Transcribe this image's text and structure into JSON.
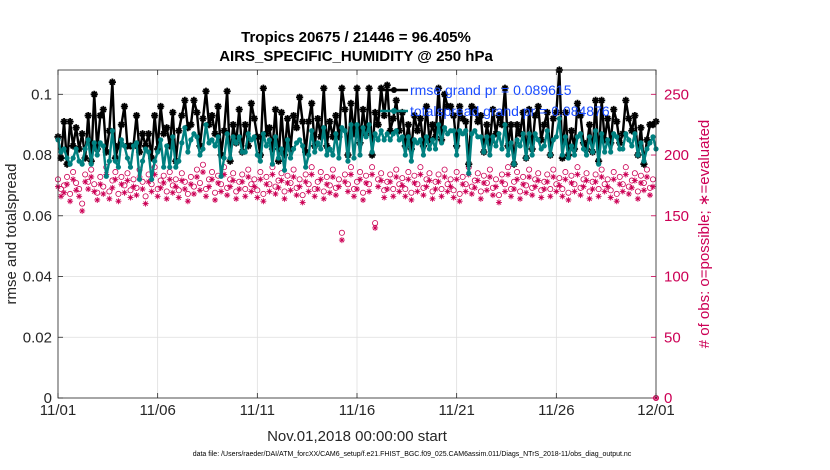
{
  "chart_data": {
    "type": "line",
    "title": "Tropics 20675 / 21446 = 96.405%",
    "subtitle": "AIRS_SPECIFIC_HUMIDITY @ 250 hPa",
    "xlabel": "Nov.01,2018 00:00:00 start",
    "ylabel": "rmse and totalspread",
    "ylabel_right": "# of obs: o=possible; ∗=evaluated",
    "footer": "data file: /Users/raeder/DAI/ATM_forcXX/CAM6_setup/f.e21.FHIST_BGC.f09_025.CAM6assim.011/Diags_NTrS_2018-11/obs_diag_output.nc",
    "xlim": [
      0,
      30
    ],
    "ylim": [
      0,
      0.108
    ],
    "ylim_right": [
      0,
      270
    ],
    "x_ticks": [
      0,
      5,
      10,
      15,
      20,
      25,
      30
    ],
    "x_tick_labels": [
      "11/01",
      "11/06",
      "11/11",
      "11/16",
      "11/21",
      "11/26",
      "12/01"
    ],
    "y_ticks": [
      0,
      0.02,
      0.04,
      0.06,
      0.08,
      0.1
    ],
    "y_tick_labels": [
      "0",
      "0.02",
      "0.04",
      "0.06",
      "0.08",
      "0.1"
    ],
    "y_right_ticks": [
      0,
      50,
      100,
      150,
      200,
      250
    ],
    "y_right_tick_labels": [
      "0",
      "50",
      "100",
      "150",
      "200",
      "250"
    ],
    "grid": true,
    "legend_position": "top-right (overlapping)",
    "colors": {
      "rmse": "#000000",
      "spread": "#008080",
      "obs": "#cc0055",
      "legend_text": "#1a4cff"
    },
    "series": [
      {
        "name": "rmse grand pr = 0.089615",
        "marker": "star",
        "values": [
          0.086,
          0.079,
          0.091,
          0.077,
          0.091,
          0.083,
          0.089,
          0.082,
          0.087,
          0.079,
          0.093,
          0.078,
          0.1,
          0.082,
          0.093,
          0.095,
          0.081,
          0.088,
          0.104,
          0.079,
          0.083,
          0.09,
          0.096,
          0.083,
          0.083,
          0.083,
          0.093,
          0.081,
          0.087,
          0.083,
          0.087,
          0.079,
          0.093,
          0.082,
          0.096,
          0.087,
          0.089,
          0.083,
          0.094,
          0.078,
          0.088,
          0.093,
          0.098,
          0.089,
          0.09,
          0.098,
          0.094,
          0.083,
          0.092,
          0.101,
          0.09,
          0.093,
          0.087,
          0.096,
          0.08,
          0.088,
          0.101,
          0.078,
          0.09,
          0.084,
          0.095,
          0.081,
          0.09,
          0.083,
          0.097,
          0.092,
          0.086,
          0.08,
          0.102,
          0.087,
          0.089,
          0.082,
          0.095,
          0.078,
          0.094,
          0.08,
          0.092,
          0.082,
          0.093,
          0.089,
          0.099,
          0.091,
          0.081,
          0.091,
          0.097,
          0.083,
          0.092,
          0.086,
          0.102,
          0.083,
          0.091,
          0.086,
          0.093,
          0.086,
          0.102,
          0.095,
          0.08,
          0.097,
          0.087,
          0.102,
          0.084,
          0.095,
          0.087,
          0.102,
          0.08,
          0.094,
          0.09,
          0.102,
          0.093,
          0.103,
          0.088,
          0.092,
          0.098,
          0.088,
          0.094,
          0.083,
          0.09,
          0.082,
          0.093,
          0.088,
          0.092,
          0.083,
          0.096,
          0.085,
          0.09,
          0.086,
          0.102,
          0.085,
          0.1,
          0.096,
          0.096,
          0.093,
          0.083,
          0.096,
          0.092,
          0.091,
          0.077,
          0.096,
          0.095,
          0.091,
          0.093,
          0.081,
          0.09,
          0.084,
          0.095,
          0.087,
          0.093,
          0.09,
          0.102,
          0.083,
          0.09,
          0.077,
          0.09,
          0.087,
          0.094,
          0.079,
          0.095,
          0.082,
          0.093,
          0.096,
          0.085,
          0.09,
          0.094,
          0.08,
          0.092,
          0.094,
          0.108,
          0.079,
          0.094,
          0.08,
          0.088,
          0.082,
          0.097,
          0.093,
          0.084,
          0.082,
          0.09,
          0.081,
          0.098,
          0.078,
          0.098,
          0.085,
          0.092,
          0.084,
          0.095,
          0.091,
          0.084,
          0.087,
          0.098,
          0.092,
          0.088,
          0.093,
          0.08,
          0.089,
          0.077,
          0.085,
          0.09,
          0.09,
          0.091
        ]
      },
      {
        "name": "totalspread grand pr = 0.084876",
        "marker": "dot",
        "values": [
          0.085,
          0.081,
          0.082,
          0.079,
          0.077,
          0.079,
          0.082,
          0.078,
          0.077,
          0.082,
          0.085,
          0.077,
          0.084,
          0.08,
          0.084,
          0.083,
          0.073,
          0.078,
          0.088,
          0.078,
          0.076,
          0.085,
          0.083,
          0.079,
          0.076,
          0.083,
          0.084,
          0.072,
          0.078,
          0.082,
          0.081,
          0.072,
          0.078,
          0.081,
          0.085,
          0.076,
          0.083,
          0.076,
          0.086,
          0.076,
          0.078,
          0.084,
          0.089,
          0.081,
          0.085,
          0.087,
          0.086,
          0.08,
          0.082,
          0.09,
          0.084,
          0.085,
          0.083,
          0.086,
          0.073,
          0.079,
          0.087,
          0.079,
          0.086,
          0.084,
          0.086,
          0.081,
          0.081,
          0.087,
          0.085,
          0.086,
          0.08,
          0.078,
          0.087,
          0.083,
          0.085,
          0.077,
          0.086,
          0.079,
          0.082,
          0.075,
          0.085,
          0.079,
          0.082,
          0.084,
          0.085,
          0.083,
          0.076,
          0.08,
          0.088,
          0.081,
          0.084,
          0.082,
          0.089,
          0.08,
          0.082,
          0.08,
          0.087,
          0.079,
          0.089,
          0.088,
          0.078,
          0.09,
          0.079,
          0.09,
          0.08,
          0.089,
          0.086,
          0.09,
          0.081,
          0.087,
          0.085,
          0.088,
          0.085,
          0.087,
          0.085,
          0.087,
          0.088,
          0.085,
          0.086,
          0.08,
          0.086,
          0.078,
          0.085,
          0.084,
          0.085,
          0.08,
          0.086,
          0.082,
          0.085,
          0.082,
          0.09,
          0.084,
          0.089,
          0.087,
          0.088,
          0.088,
          0.08,
          0.088,
          0.087,
          0.088,
          0.074,
          0.087,
          0.088,
          0.086,
          0.086,
          0.081,
          0.086,
          0.08,
          0.086,
          0.083,
          0.087,
          0.082,
          0.09,
          0.08,
          0.084,
          0.077,
          0.085,
          0.083,
          0.087,
          0.079,
          0.087,
          0.08,
          0.087,
          0.085,
          0.082,
          0.083,
          0.088,
          0.08,
          0.085,
          0.086,
          0.092,
          0.08,
          0.086,
          0.079,
          0.083,
          0.08,
          0.086,
          0.087,
          0.082,
          0.08,
          0.086,
          0.081,
          0.088,
          0.077,
          0.087,
          0.081,
          0.085,
          0.081,
          0.087,
          0.086,
          0.082,
          0.082,
          0.087,
          0.085,
          0.083,
          0.087,
          0.08,
          0.084,
          0.078,
          0.082,
          0.084,
          0.086,
          0.082
        ]
      },
      {
        "name": "obs possible",
        "axis": "right",
        "marker": "circle",
        "values": [
          180,
          172,
          175,
          182,
          168,
          186,
          177,
          172,
          160,
          184,
          178,
          188,
          176,
          169,
          182,
          174,
          190,
          170,
          179,
          186,
          168,
          182,
          175,
          185,
          171,
          180,
          173,
          188,
          178,
          166,
          184,
          176,
          190,
          172,
          179,
          183,
          170,
          186,
          175,
          180,
          171,
          185,
          178,
          168,
          182,
          174,
          188,
          177,
          192,
          172,
          180,
          186,
          169,
          183,
          176,
          190,
          173,
          180,
          185,
          170,
          178,
          184,
          172,
          188,
          176,
          180,
          171,
          186,
          168,
          182,
          176,
          190,
          174,
          179,
          185,
          170,
          183,
          177,
          188,
          173,
          180,
          167,
          184,
          176,
          190,
          172,
          178,
          186,
          170,
          182,
          175,
          188,
          173,
          180,
          136,
          184,
          176,
          190,
          172,
          178,
          186,
          169,
          183,
          176,
          190,
          144,
          180,
          185,
          171,
          178,
          184,
          172,
          188,
          176,
          181,
          172,
          186,
          169,
          183,
          176,
          190,
          173,
          180,
          185,
          170,
          178,
          184,
          172,
          188,
          176,
          180,
          171,
          186,
          168,
          182,
          176,
          190,
          174,
          179,
          185,
          170,
          183,
          177,
          188,
          173,
          180,
          167,
          184,
          176,
          190,
          172,
          178,
          186,
          170,
          182,
          175,
          188,
          173,
          180,
          185,
          171,
          178,
          184,
          172,
          188,
          176,
          181,
          172,
          186,
          169,
          183,
          176,
          190,
          173,
          180,
          185,
          170,
          178,
          184,
          172,
          188,
          176,
          180,
          171,
          186,
          168,
          182,
          176,
          190,
          174,
          179,
          185,
          170,
          183,
          177,
          188,
          173,
          180,
          0
        ]
      },
      {
        "name": "obs evaluated",
        "axis": "right",
        "marker": "asterisk",
        "values": [
          174,
          166,
          169,
          176,
          162,
          180,
          171,
          166,
          154,
          178,
          172,
          182,
          170,
          163,
          176,
          168,
          184,
          164,
          173,
          180,
          162,
          176,
          169,
          179,
          165,
          174,
          167,
          182,
          172,
          160,
          178,
          170,
          184,
          166,
          173,
          177,
          164,
          180,
          169,
          174,
          165,
          179,
          172,
          162,
          176,
          168,
          182,
          171,
          186,
          166,
          174,
          180,
          163,
          177,
          170,
          184,
          167,
          174,
          179,
          164,
          172,
          178,
          166,
          182,
          170,
          174,
          165,
          180,
          162,
          176,
          170,
          184,
          168,
          173,
          179,
          164,
          177,
          171,
          182,
          167,
          174,
          161,
          178,
          170,
          184,
          166,
          172,
          180,
          164,
          176,
          169,
          182,
          167,
          174,
          130,
          178,
          170,
          184,
          166,
          172,
          180,
          163,
          177,
          170,
          184,
          140,
          174,
          179,
          165,
          172,
          178,
          166,
          182,
          170,
          175,
          166,
          180,
          163,
          177,
          170,
          184,
          167,
          174,
          179,
          164,
          172,
          178,
          166,
          182,
          170,
          174,
          165,
          180,
          162,
          176,
          170,
          184,
          168,
          173,
          179,
          164,
          177,
          171,
          182,
          167,
          174,
          161,
          178,
          170,
          184,
          166,
          172,
          180,
          164,
          176,
          169,
          182,
          167,
          174,
          179,
          165,
          172,
          178,
          166,
          182,
          170,
          175,
          166,
          180,
          163,
          177,
          170,
          184,
          167,
          174,
          179,
          164,
          172,
          178,
          166,
          182,
          170,
          174,
          165,
          180,
          162,
          176,
          170,
          184,
          168,
          173,
          179,
          164,
          177,
          171,
          182,
          167,
          174,
          0
        ]
      }
    ]
  }
}
